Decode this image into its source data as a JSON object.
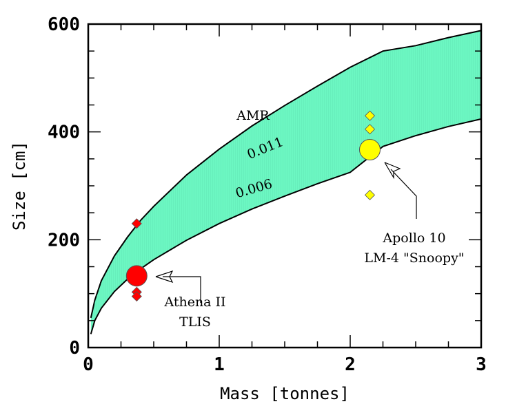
{
  "chart_data": {
    "type": "scatter",
    "xlabel": "Mass [tonnes]",
    "ylabel": "Size [cm]",
    "xlim": [
      0,
      3
    ],
    "ylim": [
      0,
      600
    ],
    "xticks": [
      0,
      1,
      2,
      3
    ],
    "xtick_labels": [
      "0",
      "1",
      "2",
      "3"
    ],
    "yticks": [
      0,
      200,
      400,
      600
    ],
    "ytick_labels": [
      "0",
      "200",
      "400",
      "600"
    ],
    "band": {
      "label": "AMR",
      "fill_color": "#6cf7c2",
      "upper": {
        "label": "0.011",
        "x": [
          0.02,
          0.05,
          0.1,
          0.2,
          0.3,
          0.4,
          0.5,
          0.75,
          1.0,
          1.25,
          1.5,
          1.75,
          2.0,
          2.25,
          2.5,
          2.75,
          3.0
        ],
        "y": [
          55,
          88,
          124,
          170,
          205,
          236,
          262,
          320,
          368,
          411,
          449,
          485,
          520,
          550,
          560,
          575,
          588
        ]
      },
      "lower": {
        "label": "0.006",
        "x": [
          0.02,
          0.05,
          0.1,
          0.2,
          0.3,
          0.4,
          0.5,
          0.75,
          1.0,
          1.25,
          1.5,
          1.75,
          2.0,
          2.25,
          2.5,
          2.75,
          3.0
        ],
        "y": [
          25,
          50,
          73,
          104,
          127,
          146,
          163,
          199,
          230,
          257,
          281,
          304,
          325,
          373,
          393,
          410,
          424
        ]
      }
    },
    "series": [
      {
        "name": "Athena II TLIS",
        "color": "#ff0000",
        "marker": "diamond",
        "x": [
          0.37,
          0.37,
          0.37
        ],
        "y": [
          230,
          103,
          95
        ]
      },
      {
        "name": "Apollo 10 LM-4 \"Snoopy\"",
        "color": "#ffff00",
        "marker": "diamond",
        "x": [
          2.15,
          2.15,
          2.15
        ],
        "y": [
          430,
          405,
          283
        ]
      }
    ],
    "highlights": [
      {
        "name": "Athena II TLIS",
        "color": "#ff0000",
        "x": 0.37,
        "y": 133
      },
      {
        "name": "Apollo 10 LM-4 \"Snoopy\"",
        "color": "#ffff00",
        "x": 2.15,
        "y": 367
      }
    ],
    "annotations": {
      "athena_line1": "Athena II",
      "athena_line2": "TLIS",
      "apollo_line1": "Apollo 10",
      "apollo_line2": "LM-4 \"Snoopy\""
    }
  }
}
